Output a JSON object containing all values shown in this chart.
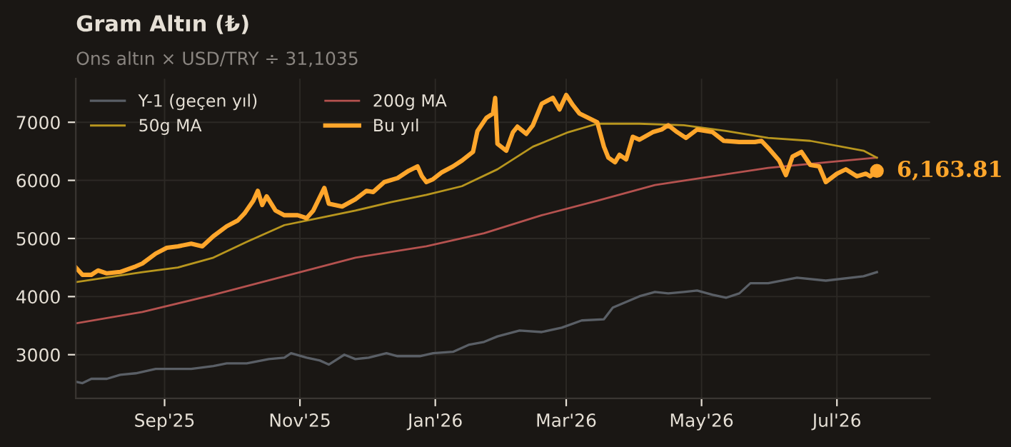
{
  "chart_data": {
    "type": "line",
    "title": "Gram Altın (₺)",
    "subtitle": "Ons altın × USD/TRY ÷ 31,1035",
    "xlim": [
      "2025-07-23",
      "2026-08-12"
    ],
    "ylim": [
      2250,
      7750
    ],
    "xticks": [
      {
        "value": "2025-09-01",
        "label": "Sep'25"
      },
      {
        "value": "2025-11-01",
        "label": "Nov'25"
      },
      {
        "value": "2026-01-01",
        "label": "Jan'26"
      },
      {
        "value": "2026-03-01",
        "label": "Mar'26"
      },
      {
        "value": "2026-05-01",
        "label": "May'26"
      },
      {
        "value": "2026-07-01",
        "label": "Jul'26"
      }
    ],
    "yticks": [
      3000,
      4000,
      5000,
      6000,
      7000
    ],
    "grid": true,
    "legend": "top left",
    "marker": "none",
    "line_style": "solid",
    "series": [
      {
        "name": "Y-1 (geçen yıl)",
        "color": "#5a5f66",
        "x": [
          "2025-07-23",
          "2025-07-26",
          "2025-07-30",
          "2025-08-06",
          "2025-08-12",
          "2025-08-19",
          "2025-08-28",
          "2025-09-07",
          "2025-09-13",
          "2025-09-23",
          "2025-09-29",
          "2025-10-08",
          "2025-10-18",
          "2025-10-25",
          "2025-10-28",
          "2025-11-04",
          "2025-11-10",
          "2025-11-14",
          "2025-11-21",
          "2025-11-26",
          "2025-12-02",
          "2025-12-10",
          "2025-12-15",
          "2025-12-25",
          "2025-12-31",
          "2026-01-09",
          "2026-01-16",
          "2026-01-23",
          "2026-01-29",
          "2026-02-08",
          "2026-02-18",
          "2026-02-27",
          "2026-03-08",
          "2026-03-18",
          "2026-03-22",
          "2026-04-03",
          "2026-04-10",
          "2026-04-16",
          "2026-04-23",
          "2026-04-29",
          "2026-05-06",
          "2026-05-12",
          "2026-05-18",
          "2026-05-23",
          "2026-05-31",
          "2026-06-13",
          "2026-06-26",
          "2026-07-13",
          "2026-07-19"
        ],
        "values": [
          2535,
          2510,
          2585,
          2585,
          2655,
          2680,
          2755,
          2755,
          2755,
          2805,
          2850,
          2850,
          2925,
          2950,
          3025,
          2950,
          2900,
          2830,
          3000,
          2925,
          2950,
          3025,
          2975,
          2975,
          3025,
          3050,
          3170,
          3220,
          3315,
          3415,
          3390,
          3465,
          3590,
          3610,
          3810,
          4005,
          4080,
          4055,
          4080,
          4105,
          4030,
          3980,
          4055,
          4230,
          4230,
          4325,
          4275,
          4350,
          4420
        ]
      },
      {
        "name": "200g MA",
        "color": "#b5524f",
        "x": [
          "2025-07-23",
          "2025-08-22",
          "2025-09-23",
          "2025-10-25",
          "2025-11-26",
          "2025-12-28",
          "2026-01-23",
          "2026-02-18",
          "2026-03-15",
          "2026-04-10",
          "2026-05-06",
          "2026-05-31",
          "2026-06-26",
          "2026-07-19"
        ],
        "values": [
          3540,
          3735,
          4030,
          4350,
          4670,
          4865,
          5090,
          5400,
          5650,
          5920,
          6070,
          6215,
          6310,
          6390
        ]
      },
      {
        "name": "50g MA",
        "color": "#b8961e",
        "x": [
          "2025-07-23",
          "2025-08-22",
          "2025-09-07",
          "2025-09-23",
          "2025-10-08",
          "2025-10-25",
          "2025-11-10",
          "2025-11-26",
          "2025-12-12",
          "2025-12-28",
          "2026-01-13",
          "2026-01-29",
          "2026-02-14",
          "2026-03-02",
          "2026-03-15",
          "2026-04-03",
          "2026-04-23",
          "2026-05-12",
          "2026-05-31",
          "2026-06-19",
          "2026-07-13",
          "2026-07-19"
        ],
        "values": [
          4250,
          4420,
          4500,
          4670,
          4940,
          5230,
          5355,
          5480,
          5625,
          5750,
          5900,
          6190,
          6580,
          6830,
          6975,
          6975,
          6950,
          6850,
          6730,
          6680,
          6510,
          6390
        ]
      },
      {
        "name": "Bu yıl",
        "color": "#ffa62b",
        "x": [
          "2025-07-23",
          "2025-07-26",
          "2025-07-30",
          "2025-08-02",
          "2025-08-06",
          "2025-08-12",
          "2025-08-19",
          "2025-08-22",
          "2025-08-28",
          "2025-09-02",
          "2025-09-07",
          "2025-09-13",
          "2025-09-18",
          "2025-09-23",
          "2025-09-29",
          "2025-10-04",
          "2025-10-07",
          "2025-10-11",
          "2025-10-13",
          "2025-10-15",
          "2025-10-17",
          "2025-10-21",
          "2025-10-25",
          "2025-10-31",
          "2025-11-04",
          "2025-11-07",
          "2025-11-12",
          "2025-11-14",
          "2025-11-20",
          "2025-11-26",
          "2025-12-01",
          "2025-12-04",
          "2025-12-09",
          "2025-12-15",
          "2025-12-20",
          "2025-12-24",
          "2025-12-26",
          "2025-12-28",
          "2025-12-31",
          "2026-01-04",
          "2026-01-09",
          "2026-01-13",
          "2026-01-18",
          "2026-01-20",
          "2026-01-24",
          "2026-01-27",
          "2026-01-28",
          "2026-01-29",
          "2026-02-02",
          "2026-02-05",
          "2026-02-07",
          "2026-02-11",
          "2026-02-14",
          "2026-02-18",
          "2026-02-23",
          "2026-02-26",
          "2026-03-01",
          "2026-03-04",
          "2026-03-07",
          "2026-03-15",
          "2026-03-18",
          "2026-03-20",
          "2026-03-23",
          "2026-03-25",
          "2026-03-28",
          "2026-03-31",
          "2026-04-03",
          "2026-04-09",
          "2026-04-13",
          "2026-04-16",
          "2026-04-20",
          "2026-04-24",
          "2026-04-29",
          "2026-05-06",
          "2026-05-11",
          "2026-05-18",
          "2026-05-25",
          "2026-05-28",
          "2026-05-31",
          "2026-06-05",
          "2026-06-08",
          "2026-06-11",
          "2026-06-15",
          "2026-06-19",
          "2026-06-23",
          "2026-06-26",
          "2026-07-01",
          "2026-07-05",
          "2026-07-10",
          "2026-07-14",
          "2026-07-16",
          "2026-07-19"
        ],
        "values": [
          4500,
          4375,
          4375,
          4450,
          4400,
          4425,
          4520,
          4570,
          4740,
          4840,
          4865,
          4910,
          4865,
          5040,
          5210,
          5310,
          5430,
          5650,
          5820,
          5575,
          5725,
          5480,
          5400,
          5400,
          5350,
          5480,
          5870,
          5600,
          5550,
          5675,
          5820,
          5800,
          5970,
          6040,
          6165,
          6240,
          6070,
          5970,
          6020,
          6140,
          6240,
          6340,
          6490,
          6850,
          7075,
          7150,
          7420,
          6630,
          6510,
          6830,
          6925,
          6800,
          6950,
          7320,
          7420,
          7220,
          7470,
          7295,
          7150,
          7000,
          6580,
          6390,
          6310,
          6440,
          6360,
          6750,
          6700,
          6830,
          6875,
          6950,
          6830,
          6730,
          6875,
          6830,
          6680,
          6660,
          6660,
          6680,
          6560,
          6340,
          6090,
          6410,
          6490,
          6265,
          6240,
          5970,
          6115,
          6190,
          6070,
          6115,
          6070,
          6163.81
        ]
      }
    ],
    "annotations": [
      {
        "text": "6,163.81",
        "x": "2026-07-19",
        "y": 6163.81
      }
    ]
  }
}
